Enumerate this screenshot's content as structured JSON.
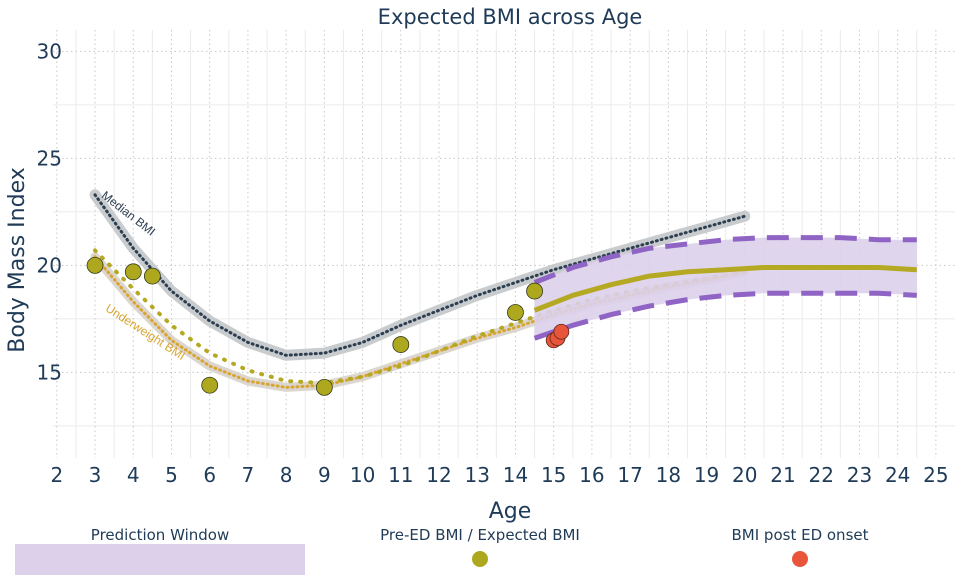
{
  "chart_data": {
    "type": "line",
    "title": "Expected BMI across Age",
    "xlabel": "Age",
    "ylabel": "Body Mass Index",
    "xlim": [
      1.9,
      25.5
    ],
    "ylim": [
      11,
      31
    ],
    "x_ticks": [
      2,
      3,
      4,
      5,
      6,
      7,
      8,
      9,
      10,
      11,
      12,
      13,
      14,
      15,
      16,
      17,
      18,
      19,
      20,
      21,
      22,
      23,
      24,
      25
    ],
    "y_ticks": [
      15,
      20,
      25,
      30
    ],
    "grid": true,
    "colors": {
      "median": "#2c3e50",
      "median_band": "#c9ccce",
      "underweight": "#d8a530",
      "underweight_band": "#dcd6d0",
      "predicted": "#b5a923",
      "prediction_window": "#dcd0ea",
      "prediction_bounds": "#8f64c4",
      "pre_ed_point": "#aea81f",
      "post_ed_point": "#e8553b",
      "dotted_expected": "#b5a923"
    },
    "median_label": "Median BMI",
    "underweight_label": "Underweight BMI",
    "median_curve": {
      "x": [
        3,
        4,
        5,
        6,
        7,
        8,
        9,
        10,
        11,
        12,
        13,
        14,
        15,
        16,
        17,
        18,
        19,
        20
      ],
      "y": [
        23.3,
        20.8,
        18.8,
        17.4,
        16.4,
        15.8,
        15.9,
        16.4,
        17.2,
        17.9,
        18.6,
        19.2,
        19.8,
        20.3,
        20.8,
        21.3,
        21.8,
        22.3
      ]
    },
    "underweight_curve": {
      "x": [
        3,
        4,
        5,
        6,
        7,
        8,
        9,
        10,
        11,
        12,
        13,
        14,
        15,
        16,
        17,
        18,
        19,
        20
      ],
      "y": [
        20.4,
        18.3,
        16.5,
        15.3,
        14.6,
        14.3,
        14.4,
        14.8,
        15.4,
        16.0,
        16.6,
        17.1,
        17.7,
        18.2,
        18.6,
        19.0,
        19.3,
        19.7
      ]
    },
    "expected_dotted": {
      "x": [
        3,
        4,
        5,
        6,
        7,
        8,
        9,
        10,
        11,
        12,
        13,
        14,
        15,
        16,
        17,
        18,
        19,
        20
      ],
      "y": [
        20.7,
        18.9,
        17.2,
        15.9,
        15.1,
        14.6,
        14.5,
        14.8,
        15.3,
        16.0,
        16.7,
        17.3,
        17.9,
        18.4,
        18.8,
        19.1,
        19.4,
        19.7
      ]
    },
    "prediction_window": {
      "x": [
        14.5,
        15.5,
        16.5,
        17.5,
        18.5,
        19.5,
        20.5,
        21.5,
        22.5,
        23.5,
        24.5
      ],
      "upper": [
        19.2,
        19.9,
        20.4,
        20.8,
        21.0,
        21.2,
        21.3,
        21.3,
        21.3,
        21.2,
        21.2
      ],
      "lower": [
        16.6,
        17.2,
        17.7,
        18.1,
        18.4,
        18.6,
        18.7,
        18.7,
        18.7,
        18.7,
        18.6
      ],
      "predicted": [
        17.9,
        18.6,
        19.1,
        19.5,
        19.7,
        19.8,
        19.9,
        19.9,
        19.9,
        19.9,
        19.8
      ]
    },
    "pre_ed_points": {
      "x": [
        3,
        4,
        4.5,
        6,
        9,
        11,
        14,
        14.5
      ],
      "y": [
        20.0,
        19.7,
        19.5,
        14.4,
        14.3,
        16.3,
        17.8,
        18.8
      ]
    },
    "post_ed_points": {
      "x": [
        15.0,
        15.1,
        15.2
      ],
      "y": [
        16.5,
        16.6,
        16.9
      ]
    },
    "legend": {
      "prediction_window": "Prediction Window",
      "pre_ed": "Pre-ED BMI / Expected BMI",
      "post_ed": "BMI post ED onset"
    }
  }
}
